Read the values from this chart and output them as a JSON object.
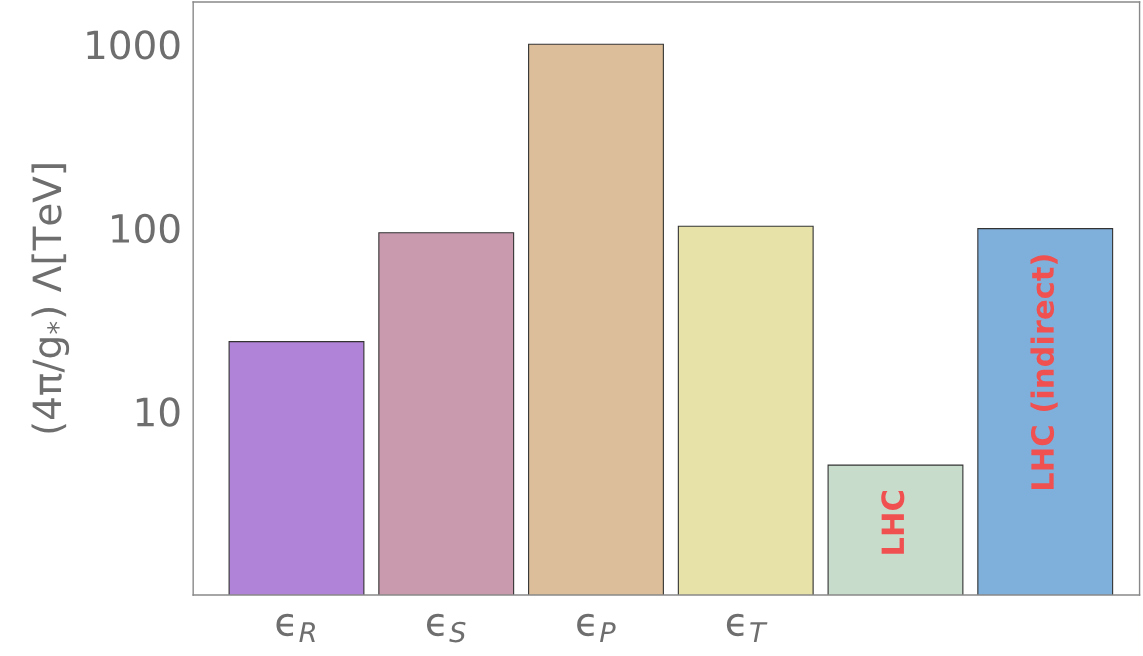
{
  "chart_data": {
    "type": "bar",
    "ylabel": "(4π/g$_{*}$) Λ[TeV]",
    "categories": [
      "ϵ$_{R}$",
      "ϵ$_{S}$",
      "ϵ$_{P}$",
      "ϵ$_{T}$",
      null,
      null
    ],
    "values": [
      24,
      94,
      1000,
      102,
      5.1,
      99
    ],
    "colors": [
      "#b083d8",
      "#c99aae",
      "#dcbf9a",
      "#e6e2a8",
      "#c8dccc",
      "#7fb0dc"
    ],
    "log": "y",
    "ylim": [
      1,
      1700
    ],
    "yticks": [
      10,
      100,
      1000
    ],
    "annotations": [
      "LHC",
      "LHC (indirect)"
    ],
    "grid": false,
    "legend": false
  }
}
